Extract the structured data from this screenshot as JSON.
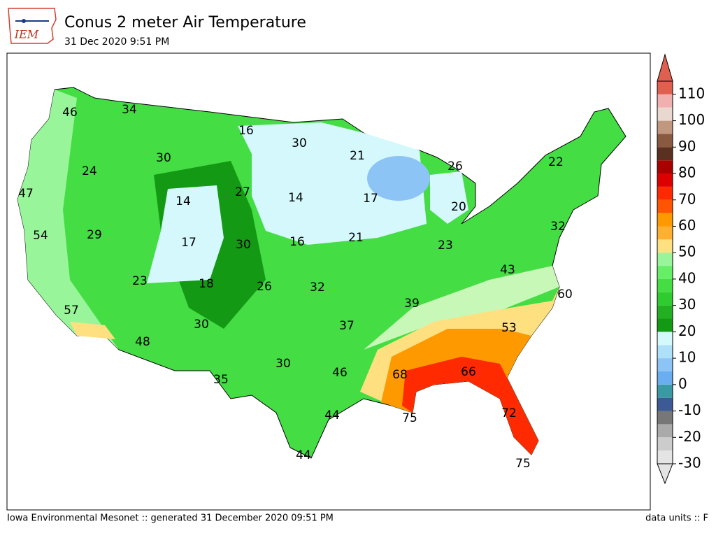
{
  "header": {
    "logo_text": "IEM",
    "title": "Conus 2 meter Air Temperature",
    "subtitle": "31 Dec 2020 9:51 PM"
  },
  "map": {
    "labels": [
      46,
      34,
      16,
      30,
      21,
      26,
      22,
      24,
      30,
      47,
      14,
      27,
      14,
      17,
      20,
      54,
      29,
      17,
      30,
      16,
      21,
      23,
      32,
      43,
      23,
      18,
      26,
      32,
      39,
      60,
      57,
      30,
      37,
      53,
      48,
      30,
      46,
      68,
      66,
      35,
      44,
      75,
      72,
      44,
      75
    ]
  },
  "colorbar": {
    "lim": [
      -30,
      115
    ],
    "ticks": [
      -30,
      -20,
      -10,
      0,
      10,
      20,
      30,
      40,
      50,
      60,
      70,
      80,
      90,
      100,
      110
    ],
    "colors": [
      "#e4e4e4",
      "#cccccc",
      "#aaaaaa",
      "#777777",
      "#3d5a96",
      "#3a9aa3",
      "#6aaef0",
      "#8dc4f6",
      "#aee0fa",
      "#d4f8fc",
      "#149914",
      "#22b022",
      "#2fcc2f",
      "#44dd44",
      "#66ee66",
      "#99f599",
      "#ffe080",
      "#ffb030",
      "#ff9900",
      "#ff5500",
      "#ff2a00",
      "#dd0000",
      "#aa0000",
      "#5a3020",
      "#8a5a40",
      "#c09880",
      "#e8d8d0",
      "#f0b0b0",
      "#e06050"
    ]
  },
  "footer": {
    "left": "Iowa Environmental Mesonet :: generated 31 December 2020 09:51 PM",
    "right": "data units :: F"
  }
}
